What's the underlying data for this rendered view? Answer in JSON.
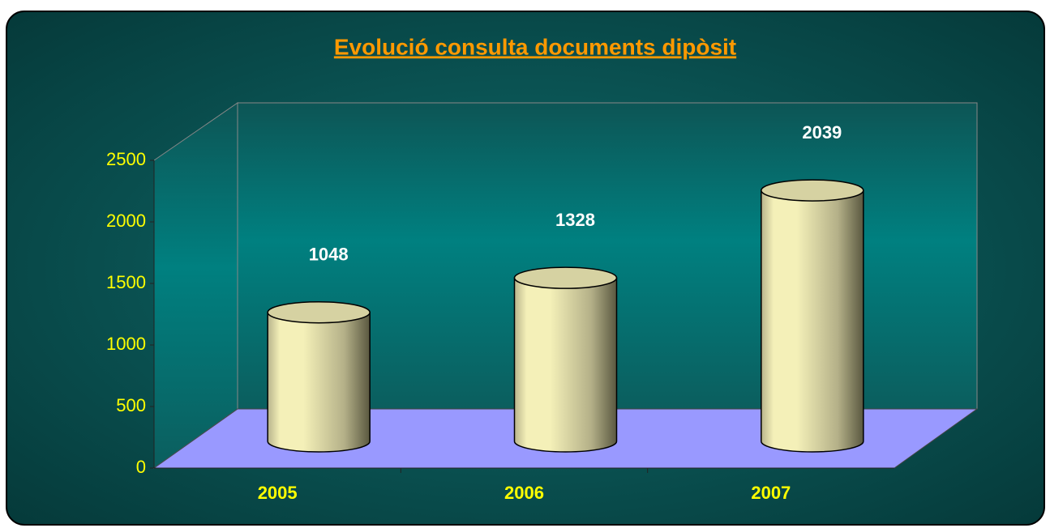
{
  "chart_data": {
    "type": "cylinder",
    "title": "Evolució consulta documents dipòsit",
    "categories": [
      "2005",
      "2006",
      "2007"
    ],
    "values": [
      1048,
      1328,
      2039
    ],
    "color": "#f4f0b8",
    "ylim": [
      0,
      2500
    ],
    "yticks": [
      0,
      500,
      1000,
      1500,
      2000,
      2500
    ],
    "grid": false
  }
}
